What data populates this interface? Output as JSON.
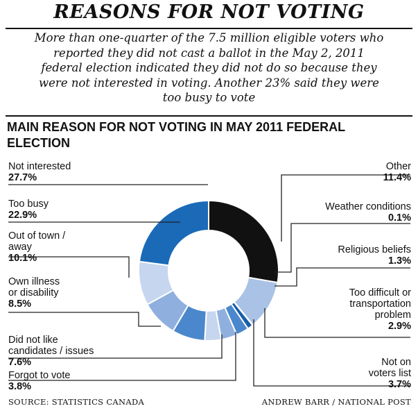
{
  "header": {
    "title": "REASONS FOR NOT VOTING",
    "subtitle_lines": [
      "More than one-quarter of the 7.5 million eligible voters who",
      "reported they did not cast a ballot in the May 2, 2011",
      "federal election indicated they did not do so because they",
      "were not interested in voting. Another 23% said they were",
      "too busy to vote"
    ]
  },
  "chart_data": {
    "type": "pie",
    "title_lines": [
      "MAIN REASON FOR NOT VOTING IN MAY 2011 FEDERAL",
      "ELECTION"
    ],
    "slices": [
      {
        "label_lines": [
          "Not interested"
        ],
        "pct_text": "27.7%",
        "value": 27.7,
        "color": "#111111"
      },
      {
        "label_lines": [
          "Other"
        ],
        "pct_text": "11.4%",
        "value": 11.4,
        "color": "#a9c2e6"
      },
      {
        "label_lines": [
          "Weather conditions"
        ],
        "pct_text": "0.1%",
        "value": 0.1,
        "color": "#ffffff"
      },
      {
        "label_lines": [
          "Religious beliefs"
        ],
        "pct_text": "1.3%",
        "value": 1.3,
        "color": "#1a5ea8"
      },
      {
        "label_lines": [
          "Too difficult or",
          "transportation",
          "problem"
        ],
        "pct_text": "2.9%",
        "value": 2.9,
        "color": "#4b87cc"
      },
      {
        "label_lines": [
          "Not on",
          "voters list"
        ],
        "pct_text": "3.7%",
        "value": 3.7,
        "color": "#8fb0df"
      },
      {
        "label_lines": [
          "Forgot to vote"
        ],
        "pct_text": "3.8%",
        "value": 3.8,
        "color": "#c6d6ef"
      },
      {
        "label_lines": [
          "Did not like",
          "candidates / issues"
        ],
        "pct_text": "7.6%",
        "value": 7.6,
        "color": "#4b87cc"
      },
      {
        "label_lines": [
          "Own illness",
          "or disability"
        ],
        "pct_text": "8.5%",
        "value": 8.5,
        "color": "#8fb0df"
      },
      {
        "label_lines": [
          "Out of town /",
          "away"
        ],
        "pct_text": "10.1%",
        "value": 10.1,
        "color": "#c6d6ef"
      },
      {
        "label_lines": [
          "Too busy"
        ],
        "pct_text": "22.9%",
        "value": 22.9,
        "color": "#1a6ab8"
      }
    ]
  },
  "footer": {
    "source": "SOURCE: STATISTICS CANADA",
    "credit": "ANDREW BARR / NATIONAL POST"
  }
}
